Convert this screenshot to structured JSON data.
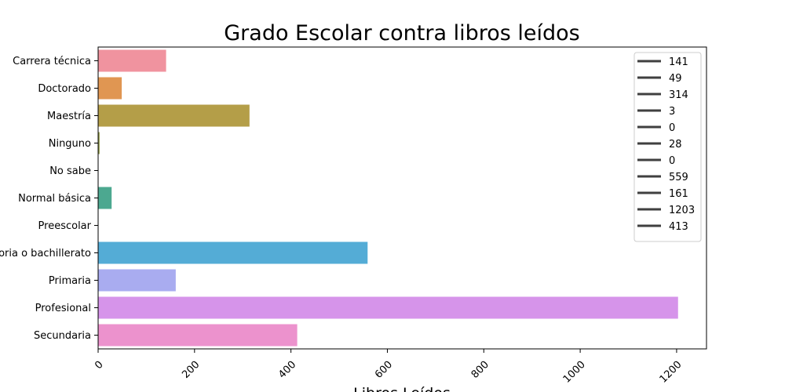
{
  "chart_data": {
    "type": "bar",
    "orientation": "horizontal",
    "title": "Grado Escolar contra libros leídos",
    "xlabel": "Libros Leídos",
    "ylabel": "",
    "xlim": [
      0,
      1262
    ],
    "xticks": [
      0,
      200,
      400,
      600,
      800,
      1000,
      1200
    ],
    "categories": [
      "Carrera técnica",
      "Doctorado",
      "Maestría",
      "Ninguno",
      "No sabe",
      "Normal básica",
      "Preescolar",
      "Preparatoria o bachillerato",
      "Primaria",
      "Profesional",
      "Secundaria"
    ],
    "values": [
      141,
      49,
      314,
      3,
      0,
      28,
      0,
      559,
      161,
      1203,
      413
    ],
    "colors": [
      "#f0939f",
      "#e09652",
      "#b49e48",
      "#929b48",
      "#5ba64a",
      "#4ca890",
      "#4ea6a8",
      "#54acd6",
      "#a9acf0",
      "#d694ea",
      "#ec92cd"
    ],
    "legend": {
      "position": "upper right",
      "entries": [
        "141",
        "49",
        "314",
        "3",
        "0",
        "28",
        "0",
        "559",
        "161",
        "1203",
        "413"
      ]
    },
    "grid": false
  }
}
